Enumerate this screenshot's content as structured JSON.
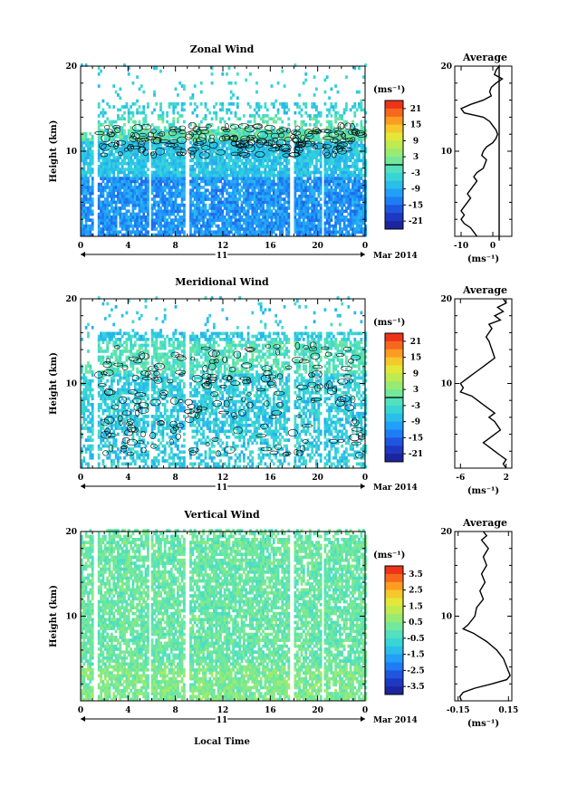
{
  "chart_data": [
    {
      "type": "heatmap",
      "title": "Zonal Wind",
      "ylabel": "Height (km)",
      "y_ticks": [
        "20",
        "10"
      ],
      "x_ticks": [
        "0",
        "4",
        "8",
        "12",
        "16",
        "20",
        "0"
      ],
      "date_axis": {
        "day": "11",
        "month_year": "Mar 2014"
      },
      "colorbar": {
        "unit": "(ms⁻¹)",
        "ticks": [
          "21",
          "15",
          "9",
          "3",
          "-3",
          "-9",
          "-15",
          "-21"
        ],
        "range": [
          -24,
          24
        ]
      },
      "ylim": [
        0,
        20
      ],
      "xlim_hours": [
        0,
        24
      ],
      "average_profile": {
        "title": "Average",
        "xlabel": "(ms⁻¹)",
        "x_ticks": [
          "-10",
          "0"
        ],
        "xlim": [
          -12,
          6
        ],
        "points": [
          [
            2,
            -0.5
          ],
          [
            2,
            20
          ],
          [
            1,
            19.5
          ],
          [
            0.5,
            19
          ],
          [
            3,
            18.5
          ],
          [
            1,
            18
          ],
          [
            -0.5,
            17.5
          ],
          [
            -1,
            17
          ],
          [
            -0.5,
            16.5
          ],
          [
            -3,
            16
          ],
          [
            -7,
            15.5
          ],
          [
            -10,
            15
          ],
          [
            -9,
            14.5
          ],
          [
            -3,
            14
          ],
          [
            -1,
            13.5
          ],
          [
            0,
            13
          ],
          [
            1,
            12.5
          ],
          [
            1.5,
            12
          ],
          [
            1,
            11.5
          ],
          [
            0,
            11
          ],
          [
            -2,
            10.5
          ],
          [
            -3,
            10
          ],
          [
            -3.5,
            9.5
          ],
          [
            -2,
            9
          ],
          [
            -2.5,
            8.5
          ],
          [
            -3,
            8
          ],
          [
            -5,
            7.5
          ],
          [
            -6,
            7
          ],
          [
            -5,
            6.5
          ],
          [
            -6,
            6
          ],
          [
            -7,
            5.5
          ],
          [
            -8,
            5
          ],
          [
            -7,
            4.5
          ],
          [
            -8,
            4
          ],
          [
            -9,
            3.5
          ],
          [
            -10,
            3
          ],
          [
            -9,
            2.5
          ],
          [
            -10,
            2
          ],
          [
            -9,
            1.5
          ],
          [
            -7,
            1
          ],
          [
            -6,
            0.5
          ],
          [
            -5,
            0
          ]
        ]
      }
    },
    {
      "type": "heatmap",
      "title": "Meridional Wind",
      "ylabel": "Height (km)",
      "y_ticks": [
        "20",
        "10"
      ],
      "x_ticks": [
        "0",
        "4",
        "8",
        "12",
        "16",
        "20",
        "0"
      ],
      "date_axis": {
        "day": "11",
        "month_year": "Mar 2014"
      },
      "colorbar": {
        "unit": "(ms⁻¹)",
        "ticks": [
          "21",
          "15",
          "9",
          "3",
          "-3",
          "-9",
          "-15",
          "-21"
        ],
        "range": [
          -24,
          24
        ]
      },
      "ylim": [
        0,
        20
      ],
      "xlim_hours": [
        0,
        24
      ],
      "average_profile": {
        "title": "Average",
        "xlabel": "(ms⁻¹)",
        "x_ticks": [
          "-6",
          "2"
        ],
        "xlim": [
          -7,
          3
        ],
        "points": [
          [
            1.5,
            20
          ],
          [
            2,
            19.5
          ],
          [
            0.5,
            19
          ],
          [
            1.5,
            18.5
          ],
          [
            0,
            18
          ],
          [
            1,
            17.5
          ],
          [
            -1,
            17
          ],
          [
            -0.5,
            16.5
          ],
          [
            -1,
            16
          ],
          [
            -1.5,
            15.5
          ],
          [
            -1,
            15
          ],
          [
            -0.5,
            14
          ],
          [
            0,
            13
          ],
          [
            -1,
            12.5
          ],
          [
            -2,
            12
          ],
          [
            -3,
            11.5
          ],
          [
            -4,
            11
          ],
          [
            -5,
            10.5
          ],
          [
            -6,
            10
          ],
          [
            -5.5,
            9.5
          ],
          [
            -6,
            9
          ],
          [
            -4,
            8.5
          ],
          [
            -3,
            8
          ],
          [
            -2,
            7.5
          ],
          [
            -1,
            7
          ],
          [
            0,
            6.5
          ],
          [
            -1,
            6
          ],
          [
            0,
            5.5
          ],
          [
            0.5,
            5
          ],
          [
            1,
            4.5
          ],
          [
            0,
            4
          ],
          [
            -1,
            3.5
          ],
          [
            -2,
            3
          ],
          [
            -1,
            2.5
          ],
          [
            0,
            2
          ],
          [
            1,
            1.5
          ],
          [
            2,
            1
          ],
          [
            1.5,
            0.5
          ],
          [
            2,
            0
          ]
        ]
      }
    },
    {
      "type": "heatmap",
      "title": "Vertical Wind",
      "xlabel": "Local Time",
      "ylabel": "Height (km)",
      "y_ticks": [
        "20",
        "10"
      ],
      "x_ticks": [
        "0",
        "4",
        "8",
        "12",
        "16",
        "20",
        "0"
      ],
      "date_axis": {
        "day": "11",
        "month_year": "Mar 2014"
      },
      "colorbar": {
        "unit": "(ms⁻¹)",
        "ticks": [
          "3.5",
          "2.5",
          "1.5",
          "0.5",
          "-0.5",
          "-1.5",
          "-2.5",
          "-3.5"
        ],
        "range": [
          -4,
          4
        ]
      },
      "ylim": [
        0,
        20
      ],
      "xlim_hours": [
        0,
        24
      ],
      "average_profile": {
        "title": "Average",
        "xlabel": "(ms⁻¹)",
        "x_ticks": [
          "-0.15",
          "0.15"
        ],
        "xlim": [
          -0.17,
          0.17
        ],
        "points": [
          [
            0,
            20
          ],
          [
            0.02,
            19.5
          ],
          [
            -0.01,
            19
          ],
          [
            0.03,
            18
          ],
          [
            0,
            17
          ],
          [
            0.02,
            16
          ],
          [
            -0.01,
            15
          ],
          [
            0.01,
            14
          ],
          [
            -0.02,
            13
          ],
          [
            0,
            12
          ],
          [
            -0.04,
            11
          ],
          [
            -0.05,
            10
          ],
          [
            -0.09,
            9
          ],
          [
            -0.12,
            8.5
          ],
          [
            -0.06,
            8
          ],
          [
            0.02,
            7
          ],
          [
            0.08,
            6
          ],
          [
            0.12,
            5
          ],
          [
            0.14,
            4
          ],
          [
            0.16,
            3
          ],
          [
            0.14,
            2.5
          ],
          [
            0.05,
            2
          ],
          [
            -0.05,
            1.5
          ],
          [
            -0.12,
            1
          ],
          [
            -0.14,
            0.5
          ],
          [
            -0.13,
            0
          ]
        ]
      }
    }
  ]
}
